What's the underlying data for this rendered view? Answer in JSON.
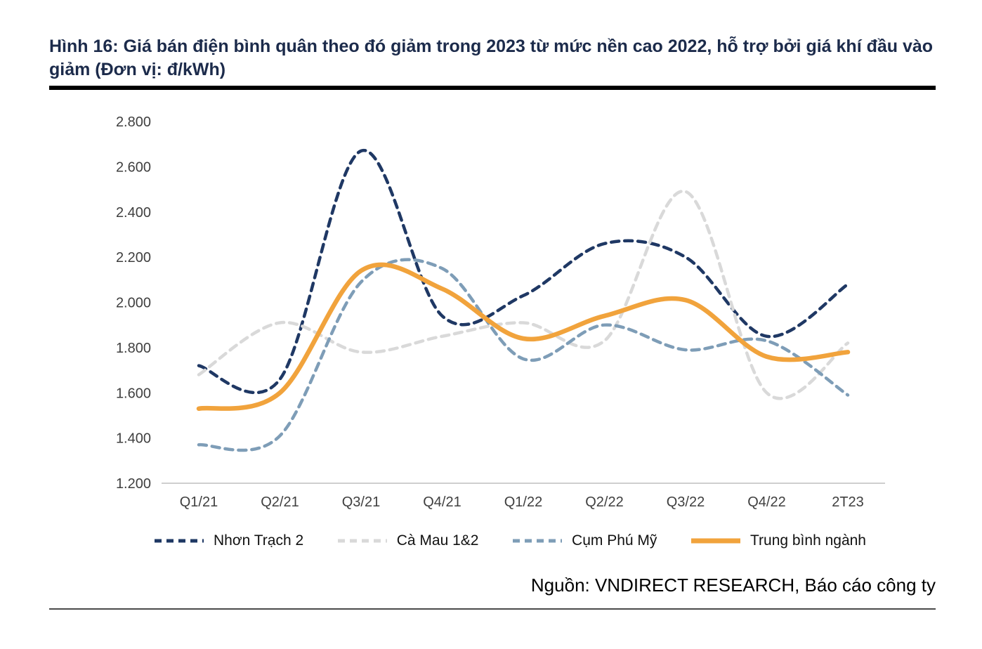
{
  "figure": {
    "title": "Hình 16: Giá bán điện bình quân theo đó giảm trong 2023 từ mức nền cao 2022, hỗ trợ bởi giá khí đầu vào giảm (Đơn vị: đ/kWh)",
    "source": "Nguồn: VNDIRECT RESEARCH, Báo cáo công ty"
  },
  "chart_data": {
    "type": "line",
    "unit": "đ/kWh",
    "categories": [
      "Q1/21",
      "Q2/21",
      "Q3/21",
      "Q4/21",
      "Q1/22",
      "Q2/22",
      "Q3/22",
      "Q4/22",
      "2T23"
    ],
    "series": [
      {
        "name": "Nhơn Trạch 2",
        "color": "#1F3864",
        "dash": "11 8",
        "width": 4.5,
        "values": [
          1720,
          1660,
          2670,
          1940,
          2030,
          2260,
          2200,
          1850,
          2080
        ]
      },
      {
        "name": "Cà Mau 1&2",
        "color": "#D9D9D9",
        "dash": "11 8",
        "width": 4.5,
        "values": [
          1680,
          1910,
          1780,
          1850,
          1910,
          1830,
          2490,
          1600,
          1820
        ]
      },
      {
        "name": "Cụm Phú Mỹ",
        "color": "#7E9DB7",
        "dash": "11 8",
        "width": 4.5,
        "values": [
          1370,
          1410,
          2090,
          2150,
          1750,
          1900,
          1790,
          1830,
          1590
        ]
      },
      {
        "name": "Trung bình ngành",
        "color": "#F1A33C",
        "dash": "",
        "width": 6.5,
        "values": [
          1530,
          1600,
          2140,
          2060,
          1840,
          1940,
          2010,
          1760,
          1780
        ]
      }
    ],
    "ylim": [
      1200,
      2800
    ],
    "ytick_step": 200,
    "ytick_labels": [
      "1.200",
      "1.400",
      "1.600",
      "1.800",
      "2.000",
      "2.200",
      "2.400",
      "2.600",
      "2.800"
    ],
    "grid": false,
    "legend_position": "bottom",
    "axis_color": "#BFBFBF"
  }
}
